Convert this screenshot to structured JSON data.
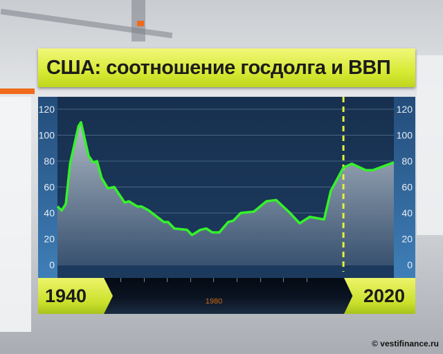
{
  "title": "США: соотношение госдолга и ВВП",
  "timeline": {
    "start_label": "1940",
    "end_label": "2020",
    "mid_label": "1980"
  },
  "watermark": "© vestifinance.ru",
  "colors": {
    "line": "#35f22a",
    "title_bar": "#d7ea34",
    "plot_bg": "#1c3a5e",
    "axis_bg": "#3f7fb8",
    "marker": "#e6f040",
    "mid_label": "#d06a12"
  },
  "chart_data": {
    "type": "area",
    "title": "США: соотношение госдолга и ВВП",
    "xlabel": "",
    "ylabel": "",
    "xlim": [
      1940,
      2020
    ],
    "ylim": [
      0,
      120
    ],
    "yticks": [
      0,
      20,
      40,
      60,
      80,
      100,
      120
    ],
    "grid": true,
    "axis_labels_both_sides": true,
    "marker_line_year": 2008,
    "series": [
      {
        "points": [
          [
            1940,
            45
          ],
          [
            1941,
            42
          ],
          [
            1942,
            47
          ],
          [
            1943,
            78
          ],
          [
            1945,
            107
          ],
          [
            1945.6,
            110
          ],
          [
            1947.4,
            84
          ],
          [
            1948.5,
            79
          ],
          [
            1949.4,
            80
          ],
          [
            1950.5,
            67
          ],
          [
            1952,
            59
          ],
          [
            1953.5,
            60
          ],
          [
            1956,
            48
          ],
          [
            1957,
            49
          ],
          [
            1959,
            45
          ],
          [
            1960,
            45
          ],
          [
            1961.7,
            42
          ],
          [
            1965.3,
            33
          ],
          [
            1966.3,
            33
          ],
          [
            1967.8,
            28
          ],
          [
            1970.8,
            27
          ],
          [
            1972,
            23
          ],
          [
            1974,
            27
          ],
          [
            1975.4,
            28
          ],
          [
            1976.8,
            25
          ],
          [
            1978.5,
            25
          ],
          [
            1980.6,
            33
          ],
          [
            1981.8,
            34
          ],
          [
            1983.6,
            40
          ],
          [
            1986.7,
            41
          ],
          [
            1989.7,
            49
          ],
          [
            1992,
            50
          ],
          [
            1995,
            41
          ],
          [
            1997.6,
            32
          ],
          [
            2000,
            37
          ],
          [
            2003.4,
            35
          ],
          [
            2005,
            57
          ],
          [
            2008,
            75
          ],
          [
            2010,
            78
          ],
          [
            2013.3,
            73
          ],
          [
            2015,
            73
          ],
          [
            2020,
            79
          ]
        ]
      }
    ]
  }
}
